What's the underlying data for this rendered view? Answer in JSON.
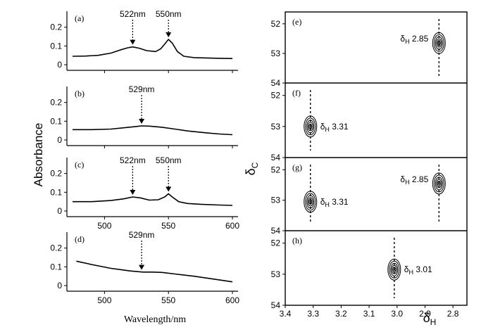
{
  "y_axis_label": "Absorbance",
  "x_axis_label": "Wavelength/nm",
  "right_y_label": {
    "main": "δ",
    "sub": "C"
  },
  "right_x_label": {
    "main": "δ",
    "sub": "H"
  },
  "colors": {
    "ink": "#000000",
    "background": "#ffffff"
  },
  "chart_data": [
    {
      "type": "line",
      "panel": "(a)",
      "xlim": [
        475,
        600
      ],
      "ylim": [
        -0.03,
        0.27
      ],
      "yticks": [
        0,
        0.1,
        0.2
      ],
      "ytick_labels": [
        "0",
        "0.1",
        "0.2"
      ],
      "xticks": [
        500,
        550,
        600
      ],
      "xtick_labels": [],
      "x": [
        475,
        485,
        495,
        505,
        512,
        518,
        522,
        527,
        533,
        540,
        544,
        547,
        550,
        553,
        557,
        562,
        570,
        580,
        590,
        600
      ],
      "y": [
        0.045,
        0.046,
        0.05,
        0.062,
        0.078,
        0.09,
        0.095,
        0.088,
        0.075,
        0.07,
        0.085,
        0.11,
        0.135,
        0.115,
        0.07,
        0.045,
        0.038,
        0.036,
        0.034,
        0.033
      ],
      "annotations": [
        {
          "text": "522nm",
          "x": 522
        },
        {
          "text": "550nm",
          "x": 550
        }
      ]
    },
    {
      "type": "line",
      "panel": "(b)",
      "xlim": [
        475,
        600
      ],
      "ylim": [
        -0.03,
        0.27
      ],
      "yticks": [
        0,
        0.1,
        0.2
      ],
      "ytick_labels": [
        "0",
        "0.1",
        "0.2"
      ],
      "xticks": [
        500,
        550,
        600
      ],
      "xtick_labels": [],
      "x": [
        475,
        490,
        505,
        515,
        525,
        529,
        535,
        545,
        555,
        565,
        580,
        590,
        600
      ],
      "y": [
        0.055,
        0.055,
        0.058,
        0.065,
        0.072,
        0.075,
        0.074,
        0.068,
        0.058,
        0.048,
        0.038,
        0.032,
        0.028
      ],
      "annotations": [
        {
          "text": "529nm",
          "x": 529
        }
      ]
    },
    {
      "type": "line",
      "panel": "(c)",
      "xlim": [
        475,
        600
      ],
      "ylim": [
        -0.03,
        0.27
      ],
      "yticks": [
        0,
        0.1,
        0.2
      ],
      "ytick_labels": [
        "0",
        "0.1",
        "0.2"
      ],
      "xticks": [
        500,
        550,
        600
      ],
      "xtick_labels": [
        "500",
        "550",
        "600"
      ],
      "x": [
        475,
        490,
        505,
        515,
        522,
        528,
        535,
        542,
        547,
        550,
        553,
        558,
        565,
        575,
        590,
        600
      ],
      "y": [
        0.05,
        0.05,
        0.056,
        0.065,
        0.075,
        0.07,
        0.058,
        0.06,
        0.075,
        0.092,
        0.075,
        0.05,
        0.04,
        0.036,
        0.032,
        0.03
      ],
      "annotations": [
        {
          "text": "522nm",
          "x": 522
        },
        {
          "text": "550nm",
          "x": 550
        }
      ]
    },
    {
      "type": "line",
      "panel": "(d)",
      "xlim": [
        475,
        600
      ],
      "ylim": [
        -0.03,
        0.27
      ],
      "yticks": [
        0,
        0.1,
        0.2
      ],
      "ytick_labels": [
        "0",
        "0.1",
        "0.2"
      ],
      "xticks": [
        500,
        550,
        600
      ],
      "xtick_labels": [
        "500",
        "550",
        "600"
      ],
      "x": [
        478,
        490,
        505,
        520,
        530,
        538,
        545,
        555,
        570,
        585,
        600
      ],
      "y": [
        0.13,
        0.112,
        0.092,
        0.078,
        0.072,
        0.072,
        0.07,
        0.062,
        0.05,
        0.035,
        0.02
      ],
      "annotations": [
        {
          "text": "529nm",
          "x": 529
        }
      ]
    },
    {
      "type": "contour",
      "panel": "(e)",
      "xlim": [
        3.4,
        2.75
      ],
      "ylim": [
        54,
        51.6
      ],
      "yticks": [
        52,
        53,
        54
      ],
      "ytick_labels": [
        "52",
        "53",
        "54"
      ],
      "peaks": [
        {
          "x": 2.85,
          "y": 52.65,
          "label": "2.85"
        }
      ]
    },
    {
      "type": "contour",
      "panel": "(f)",
      "xlim": [
        3.4,
        2.75
      ],
      "ylim": [
        54,
        51.6
      ],
      "yticks": [
        52,
        53,
        54
      ],
      "ytick_labels": [
        "52",
        "53",
        "54"
      ],
      "peaks": [
        {
          "x": 3.31,
          "y": 53.0,
          "label": "3.31"
        }
      ]
    },
    {
      "type": "contour",
      "panel": "(g)",
      "xlim": [
        3.4,
        2.75
      ],
      "ylim": [
        54,
        51.6
      ],
      "yticks": [
        52,
        53,
        54
      ],
      "ytick_labels": [
        "52",
        "53",
        "54"
      ],
      "peaks": [
        {
          "x": 3.31,
          "y": 53.05,
          "label": "3.31"
        },
        {
          "x": 2.85,
          "y": 52.45,
          "label": "2.85"
        }
      ]
    },
    {
      "type": "contour",
      "panel": "(h)",
      "xlim": [
        3.4,
        2.75
      ],
      "ylim": [
        54,
        51.6
      ],
      "yticks": [
        52,
        53,
        54
      ],
      "ytick_labels": [
        "52",
        "53",
        "54"
      ],
      "xticks": [
        3.4,
        3.3,
        3.2,
        3.1,
        3.0,
        2.9,
        2.8
      ],
      "xtick_labels": [
        "3.4",
        "3.3",
        "3.2",
        "3.1",
        "3.0",
        "2.9",
        "2.8"
      ],
      "peaks": [
        {
          "x": 3.01,
          "y": 52.85,
          "label": "3.01"
        }
      ]
    }
  ]
}
